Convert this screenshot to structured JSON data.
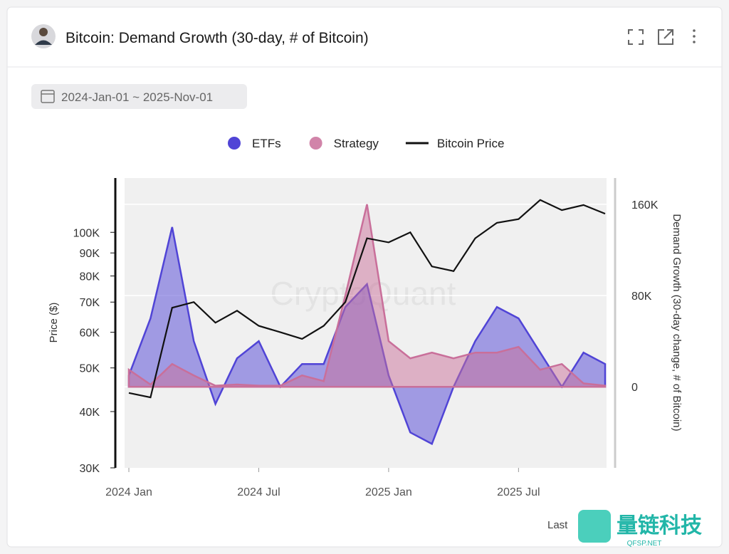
{
  "chart_data": {
    "type": "area-line",
    "title": "Bitcoin: Demand Growth (30-day, # of Bitcoin)",
    "date_range": "2024-Jan-01 ~ 2025-Nov-01",
    "ylabel": "Price ($)",
    "y2label": "Demand Growth (30-day change, # of Bitcoin)",
    "watermark": "CryptoQuant",
    "footer": "Last",
    "overlay_logo": "量链科技",
    "overlay_site": "QFSP.NET",
    "yscale": "log",
    "grid": true,
    "x": [
      "2024-01",
      "2024-02",
      "2024-03",
      "2024-04",
      "2024-05",
      "2024-06",
      "2024-07",
      "2024-08",
      "2024-09",
      "2024-10",
      "2024-11",
      "2024-12",
      "2025-01",
      "2025-02",
      "2025-03",
      "2025-04",
      "2025-05",
      "2025-06",
      "2025-07",
      "2025-08",
      "2025-09",
      "2025-10",
      "2025-11"
    ],
    "xticks": [
      {
        "value": "2024-01",
        "label": "2024 Jan"
      },
      {
        "value": "2024-07",
        "label": "2024 Jul"
      },
      {
        "value": "2025-01",
        "label": "2025 Jan"
      },
      {
        "value": "2025-07",
        "label": "2025 Jul"
      }
    ],
    "ylim": [
      30000,
      132000
    ],
    "yticks": [
      {
        "value": 30000,
        "label": "30K"
      },
      {
        "value": 40000,
        "label": "40K"
      },
      {
        "value": 50000,
        "label": "50K"
      },
      {
        "value": 60000,
        "label": "60K"
      },
      {
        "value": 70000,
        "label": "70K"
      },
      {
        "value": 80000,
        "label": "80K"
      },
      {
        "value": 90000,
        "label": "90K"
      },
      {
        "value": 100000,
        "label": "100K"
      }
    ],
    "y2lim": [
      -71000,
      183000
    ],
    "y2ticks": [
      0,
      {
        "value": 80000,
        "label": "80K"
      },
      {
        "value": 160000,
        "label": "160K"
      }
    ],
    "series": [
      {
        "name": "ETFs",
        "color": "#5044d6",
        "axis": "y2",
        "values": [
          10000,
          60000,
          140000,
          40000,
          -15000,
          25000,
          40000,
          0,
          20000,
          20000,
          70000,
          90000,
          10000,
          -40000,
          -50000,
          0,
          40000,
          70000,
          60000,
          30000,
          0,
          30000,
          20000
        ]
      },
      {
        "name": "Strategy",
        "color": "#c96f9a",
        "axis": "y2",
        "values": [
          15000,
          2000,
          20000,
          10000,
          1000,
          2000,
          1000,
          1000,
          10000,
          5000,
          80000,
          160000,
          40000,
          25000,
          30000,
          25000,
          30000,
          30000,
          35000,
          15000,
          20000,
          3000,
          1000
        ]
      },
      {
        "name": "Bitcoin Price",
        "color": "#111111",
        "axis": "y",
        "values": [
          44000,
          43000,
          68000,
          70000,
          63000,
          67000,
          62000,
          60000,
          58000,
          62000,
          70000,
          97000,
          95000,
          100000,
          84000,
          82000,
          97000,
          105000,
          107000,
          118000,
          112000,
          115000,
          110000
        ]
      }
    ]
  }
}
